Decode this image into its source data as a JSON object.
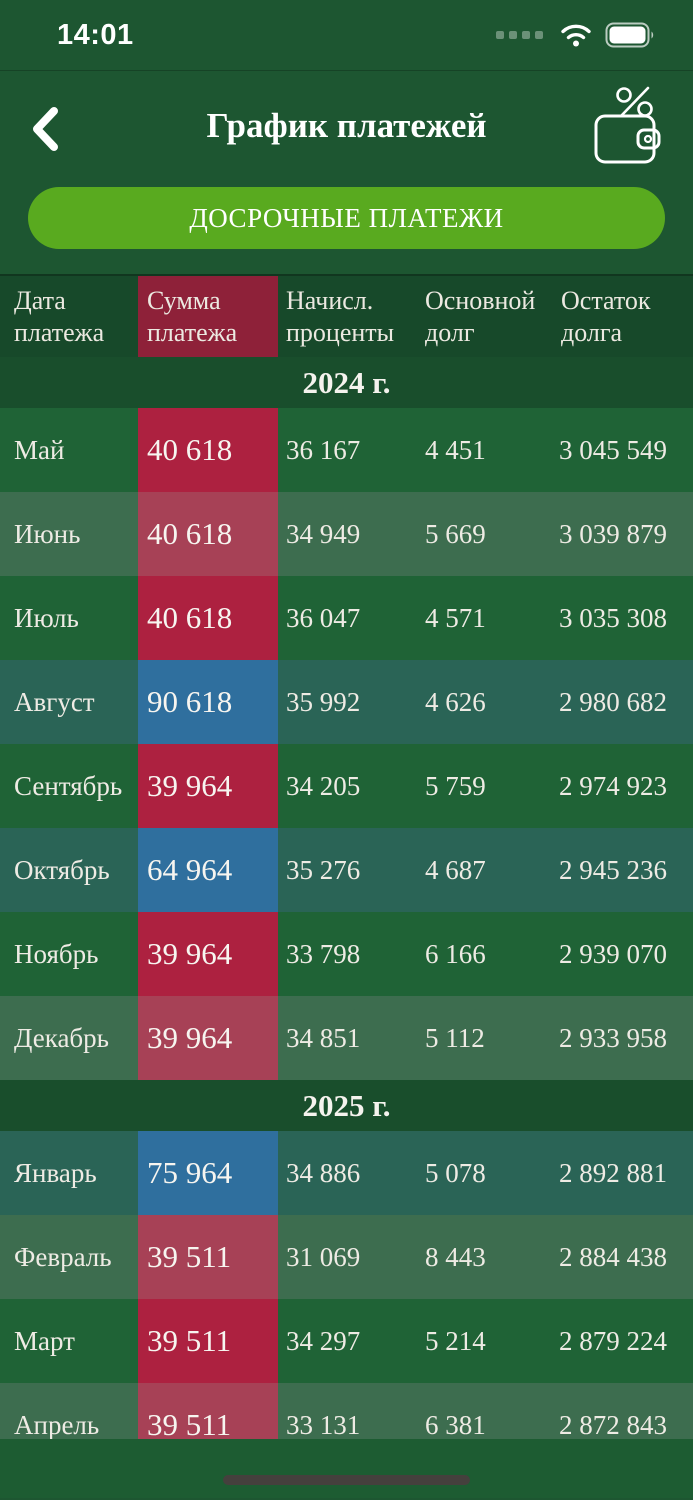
{
  "status_bar": {
    "time": "14:01"
  },
  "header": {
    "title": "График платежей",
    "back_icon": "chevron-left",
    "wallet_icon": "wallet-with-percent"
  },
  "early_payments_button": {
    "label": "ДОСРОЧНЫЕ ПЛАТЕЖИ"
  },
  "table": {
    "columns": [
      {
        "id": "date",
        "label": "Дата платежа"
      },
      {
        "id": "sum",
        "label": "Сумма платежа",
        "highlighted": true
      },
      {
        "id": "interest",
        "label": "Начисл. проценты"
      },
      {
        "id": "principal",
        "label": "Основной долг"
      },
      {
        "id": "balance",
        "label": "Остаток долга"
      }
    ],
    "sections": [
      {
        "year": "2024 г.",
        "rows": [
          {
            "month": "Май",
            "sum": "40 618",
            "interest": "36 167",
            "principal": "4 451",
            "balance": "3 045 549",
            "sum_style": "red",
            "row_style": "dark"
          },
          {
            "month": "Июнь",
            "sum": "40 618",
            "interest": "34 949",
            "principal": "5 669",
            "balance": "3 039 879",
            "sum_style": "red-muted",
            "row_style": "sage"
          },
          {
            "month": "Июль",
            "sum": "40 618",
            "interest": "36 047",
            "principal": "4 571",
            "balance": "3 035 308",
            "sum_style": "red",
            "row_style": "dark"
          },
          {
            "month": "Август",
            "sum": "90 618",
            "interest": "35 992",
            "principal": "4 626",
            "balance": "2 980 682",
            "sum_style": "blue",
            "row_style": "teal"
          },
          {
            "month": "Сентябрь",
            "sum": "39 964",
            "interest": "34 205",
            "principal": "5 759",
            "balance": "2 974 923",
            "sum_style": "red",
            "row_style": "dark"
          },
          {
            "month": "Октябрь",
            "sum": "64 964",
            "interest": "35 276",
            "principal": "4 687",
            "balance": "2 945 236",
            "sum_style": "blue",
            "row_style": "teal"
          },
          {
            "month": "Ноябрь",
            "sum": "39 964",
            "interest": "33 798",
            "principal": "6 166",
            "balance": "2 939 070",
            "sum_style": "red",
            "row_style": "dark"
          },
          {
            "month": "Декабрь",
            "sum": "39 964",
            "interest": "34 851",
            "principal": "5 112",
            "balance": "2 933 958",
            "sum_style": "red-muted",
            "row_style": "sage"
          }
        ]
      },
      {
        "year": "2025 г.",
        "rows": [
          {
            "month": "Январь",
            "sum": "75 964",
            "interest": "34 886",
            "principal": "5 078",
            "balance": "2 892 881",
            "sum_style": "blue",
            "row_style": "teal"
          },
          {
            "month": "Февраль",
            "sum": "39 511",
            "interest": "31 069",
            "principal": "8 443",
            "balance": "2 884 438",
            "sum_style": "red-muted",
            "row_style": "sage"
          },
          {
            "month": "Март",
            "sum": "39 511",
            "interest": "34 297",
            "principal": "5 214",
            "balance": "2 879 224",
            "sum_style": "red",
            "row_style": "dark"
          },
          {
            "month": "Апрель",
            "sum": "39 511",
            "interest": "33 131",
            "principal": "6 381",
            "balance": "2 872 843",
            "sum_style": "red-muted",
            "row_style": "sage"
          }
        ]
      }
    ]
  },
  "colors": {
    "background_green": "#1d5631",
    "table_header_green": "#17492a",
    "year_band_green": "#194e2c",
    "row_dark_green": "#1f6336",
    "row_sage_green": "#3d6d4f",
    "row_teal_green": "#2a6456",
    "cell_red": "#ad2140",
    "cell_red_muted": "#a74156",
    "cell_blue": "#2f6f9e",
    "button_green": "#59aa1f",
    "header_sum_red": "#8e2139"
  }
}
